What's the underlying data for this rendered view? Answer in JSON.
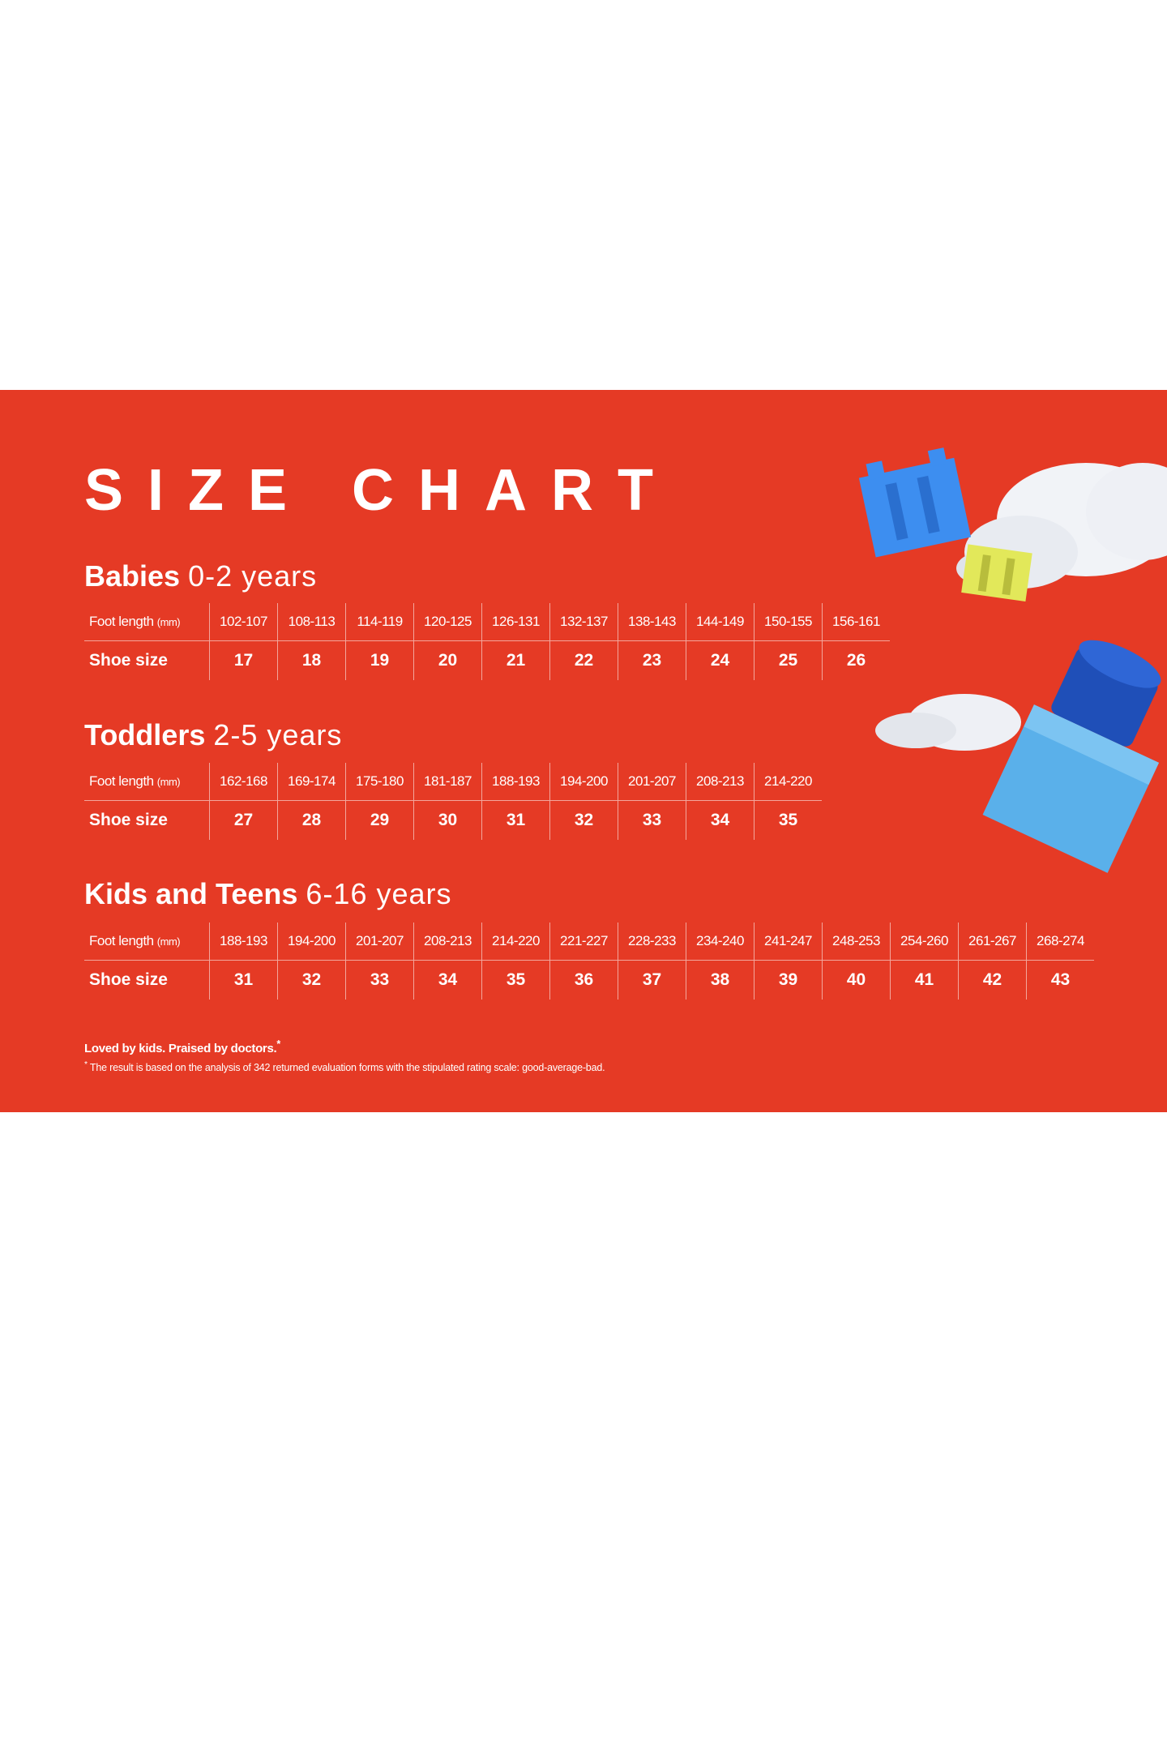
{
  "title": "SIZE CHART",
  "colors": {
    "background": "#e53a25",
    "text": "#ffffff",
    "block_blue": "#3d8ef0",
    "block_yellow": "#e2e85a"
  },
  "row_labels": {
    "foot_length": "Foot length",
    "foot_length_unit": "(mm)",
    "shoe_size": "Shoe size"
  },
  "sections": [
    {
      "name": "Babies",
      "range": "0-2 years",
      "foot_length": [
        "102-107",
        "108-113",
        "114-119",
        "120-125",
        "126-131",
        "132-137",
        "138-143",
        "144-149",
        "150-155",
        "156-161"
      ],
      "shoe_size": [
        "17",
        "18",
        "19",
        "20",
        "21",
        "22",
        "23",
        "24",
        "25",
        "26"
      ]
    },
    {
      "name": "Toddlers",
      "range": "2-5 years",
      "foot_length": [
        "162-168",
        "169-174",
        "175-180",
        "181-187",
        "188-193",
        "194-200",
        "201-207",
        "208-213",
        "214-220"
      ],
      "shoe_size": [
        "27",
        "28",
        "29",
        "30",
        "31",
        "32",
        "33",
        "34",
        "35"
      ]
    },
    {
      "name": "Kids and Teens",
      "range": "6-16 years",
      "foot_length": [
        "188-193",
        "194-200",
        "201-207",
        "208-213",
        "214-220",
        "221-227",
        "228-233",
        "234-240",
        "241-247",
        "248-253",
        "254-260",
        "261-267",
        "268-274"
      ],
      "shoe_size": [
        "31",
        "32",
        "33",
        "34",
        "35",
        "36",
        "37",
        "38",
        "39",
        "40",
        "41",
        "42",
        "43"
      ]
    }
  ],
  "footer": {
    "tagline": "Loved by kids. Praised by doctors.",
    "tagline_mark": "*",
    "note_mark": "*",
    "note": "The result is based on the analysis of 342 returned evaluation forms with the stipulated rating scale: good-average-bad."
  }
}
